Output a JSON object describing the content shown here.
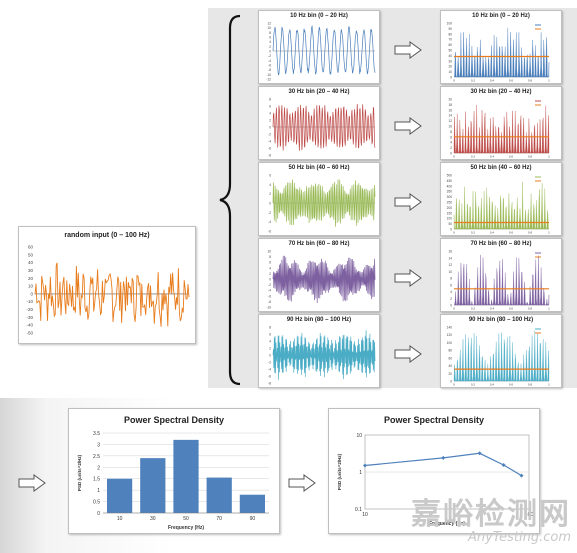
{
  "input": {
    "title": "random input (0 – 100 Hz)",
    "y_ticks": [
      "60",
      "50",
      "40",
      "30",
      "20",
      "10",
      "0",
      "-10",
      "-20",
      "-30",
      "-40",
      "-50"
    ],
    "color": "#e87d1e"
  },
  "bins": [
    {
      "title": "10 Hz bin (0 – 20 Hz)",
      "color": "#4a7ebb",
      "spec_title": "10 Hz bin (0 – 20 Hz)",
      "spec_color": "#4a7ebb",
      "avg_color": "#e87d1e",
      "y_ticks": [
        "12",
        "10",
        "8",
        "6",
        "4",
        "2",
        "0",
        "-2",
        "-4",
        "-6",
        "-8",
        "-10",
        "-12"
      ],
      "spec_y_ticks": [
        "100",
        "90",
        "80",
        "70",
        "60",
        "50",
        "40",
        "30",
        "20",
        "10",
        "0"
      ],
      "x_ticks": [
        "0",
        "0.2",
        "0.4",
        "0.6",
        "0.8",
        "1"
      ]
    },
    {
      "title": "30 Hz bin (20 – 40 Hz)",
      "color": "#be4b48",
      "spec_title": "30 Hz bin (20 – 40 Hz)",
      "spec_color": "#be4b48",
      "avg_color": "#e87d1e",
      "y_ticks": [
        "8",
        "6",
        "4",
        "2",
        "0",
        "-2",
        "-4",
        "-6",
        "-8"
      ],
      "spec_y_ticks": [
        "20",
        "18",
        "16",
        "14",
        "12",
        "10",
        "8",
        "6",
        "4",
        "2",
        "0"
      ],
      "x_ticks": [
        "0",
        "0.2",
        "0.4",
        "0.6",
        "0.8",
        "1"
      ]
    },
    {
      "title": "50 Hz bin (40 – 60 Hz)",
      "color": "#98b954",
      "spec_title": "50 Hz bin (40 – 60 Hz)",
      "spec_color": "#98b954",
      "avg_color": "#e87d1e",
      "y_ticks": [
        "6",
        "4",
        "2",
        "0",
        "-2",
        "-4",
        "-6"
      ],
      "spec_y_ticks": [
        "500",
        "450",
        "400",
        "350",
        "300",
        "250",
        "200",
        "150",
        "100",
        "50",
        "0"
      ],
      "x_ticks": [
        "0",
        "0.2",
        "0.4",
        "0.6",
        "0.8",
        "1"
      ]
    },
    {
      "title": "70 Hz bin (60 – 80 Hz)",
      "color": "#7d60a0",
      "spec_title": "70 Hz bin (60 – 80 Hz)",
      "spec_color": "#7d60a0",
      "avg_color": "#e87d1e",
      "y_ticks": [
        "10",
        "8",
        "6",
        "4",
        "2",
        "0",
        "-2",
        "-4",
        "-6",
        "-8",
        "-10"
      ],
      "spec_y_ticks": [
        "16",
        "14",
        "12",
        "10",
        "8",
        "6",
        "4",
        "2",
        "0"
      ],
      "x_ticks": [
        "0",
        "0.2",
        "0.4",
        "0.6",
        "0.8",
        "1"
      ]
    },
    {
      "title": "90 Hz bin (80 – 100 Hz)",
      "color": "#4bacc6",
      "spec_title": "90 Hz bin (80 – 100 Hz)",
      "spec_color": "#4bacc6",
      "avg_color": "#e87d1e",
      "y_ticks": [
        "8",
        "6",
        "4",
        "2",
        "0",
        "-2",
        "-4",
        "-6",
        "-8"
      ],
      "spec_y_ticks": [
        "140",
        "120",
        "100",
        "80",
        "60",
        "40",
        "20",
        "0"
      ],
      "x_ticks": [
        "0",
        "0.2",
        "0.4",
        "0.6",
        "0.8",
        "1"
      ]
    }
  ],
  "psd_bar": {
    "title": "Power Spectral Density",
    "xlabel": "Frequency (Hz)",
    "ylabel": "PSD (units^2/Hz)",
    "y_ticks": [
      "3.5",
      "3",
      "2.5",
      "2",
      "1.5",
      "1",
      "0.5",
      "0"
    ],
    "color": "#4f81bd"
  },
  "psd_log": {
    "title": "Power Spectral Density",
    "xlabel": "Frequency (Hz)",
    "ylabel": "PSD (units^2/Hz)",
    "y_ticks": [
      "10",
      "1",
      "0.1"
    ],
    "x_ticks": [
      "10",
      "100"
    ],
    "color": "#4f81bd"
  },
  "chart_data": [
    {
      "type": "bar",
      "title": "Power Spectral Density",
      "xlabel": "Frequency (Hz)",
      "ylabel": "PSD (units^2/Hz)",
      "categories": [
        "10",
        "30",
        "50",
        "70",
        "90"
      ],
      "values": [
        1.5,
        2.4,
        3.2,
        1.55,
        0.8
      ],
      "ylim": [
        0,
        3.5
      ],
      "grid": true
    },
    {
      "type": "line",
      "title": "Power Spectral Density",
      "xlabel": "Frequency (Hz)",
      "ylabel": "PSD (units^2/Hz)",
      "x": [
        10,
        30,
        50,
        70,
        90
      ],
      "y": [
        1.5,
        2.4,
        3.2,
        1.55,
        0.8
      ],
      "xscale": "log",
      "yscale": "log",
      "xlim": [
        10,
        100
      ],
      "ylim": [
        0.1,
        10
      ],
      "grid": true
    }
  ],
  "watermark": {
    "line1": "嘉峪检测网",
    "line2": "AnyTesting.com"
  }
}
